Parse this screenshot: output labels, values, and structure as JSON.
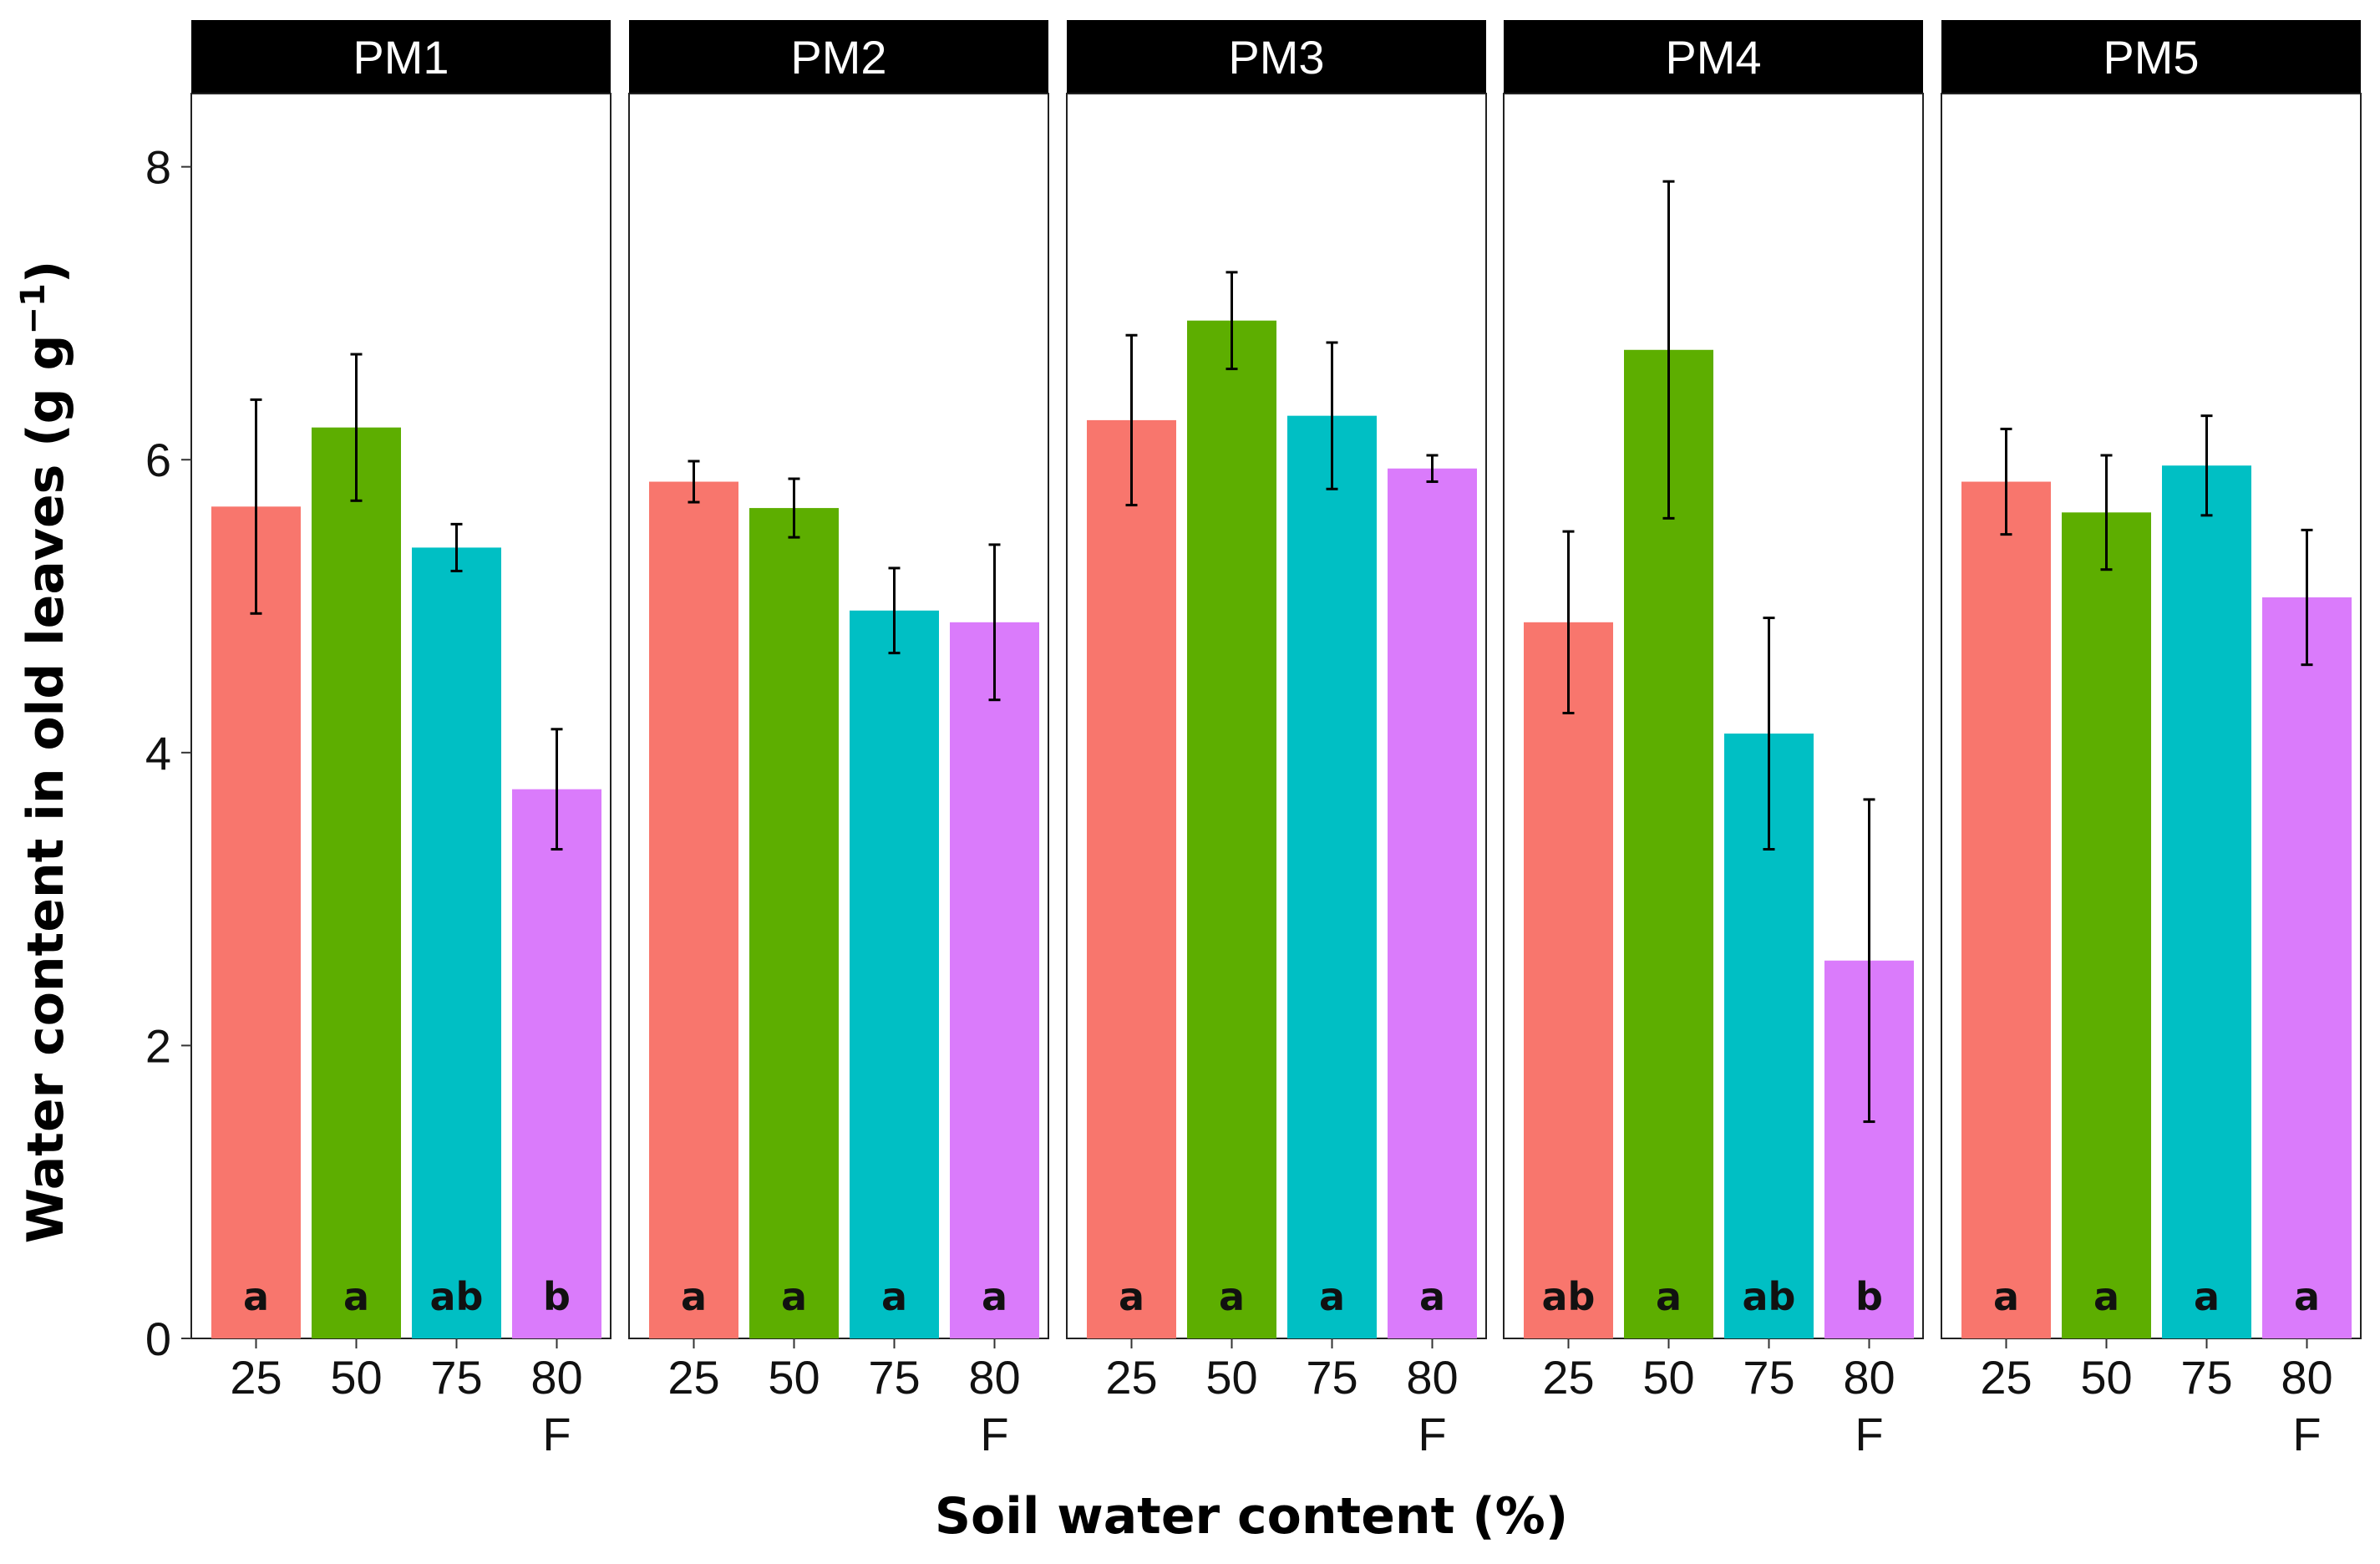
{
  "chart_data": {
    "type": "bar",
    "title": "",
    "xlabel": "Soil water content (%)",
    "ylabel": "Water content in old leaves (g g",
    "ylabel_superscript": "−1",
    "ylabel_close": ")",
    "ylim": [
      0,
      8.5
    ],
    "yticks": [
      0,
      2,
      4,
      6,
      8
    ],
    "categories": [
      {
        "main": "25",
        "sub": ""
      },
      {
        "main": "50",
        "sub": ""
      },
      {
        "main": "75",
        "sub": ""
      },
      {
        "main": "80",
        "sub": "F"
      }
    ],
    "colors": [
      "#F8766D",
      "#5DAE00",
      "#00BFC4",
      "#DA7BFB"
    ],
    "panels": [
      {
        "name": "PM1",
        "values": [
          5.68,
          6.22,
          5.4,
          3.75
        ],
        "errors": [
          0.73,
          0.5,
          0.16,
          0.41
        ],
        "letters": [
          "a",
          "a",
          "ab",
          "b"
        ]
      },
      {
        "name": "PM2",
        "values": [
          5.85,
          5.67,
          4.97,
          4.89
        ],
        "errors": [
          0.14,
          0.2,
          0.29,
          0.53
        ],
        "letters": [
          "a",
          "a",
          "a",
          "a"
        ]
      },
      {
        "name": "PM3",
        "values": [
          6.27,
          6.95,
          6.3,
          5.94
        ],
        "errors": [
          0.58,
          0.33,
          0.5,
          0.09
        ],
        "letters": [
          "a",
          "a",
          "a",
          "a"
        ]
      },
      {
        "name": "PM4",
        "values": [
          4.89,
          6.75,
          4.13,
          2.58
        ],
        "errors": [
          0.62,
          1.15,
          0.79,
          1.1
        ],
        "letters": [
          "ab",
          "a",
          "ab",
          "b"
        ]
      },
      {
        "name": "PM5",
        "values": [
          5.85,
          5.64,
          5.96,
          5.06
        ],
        "errors": [
          0.36,
          0.39,
          0.34,
          0.46
        ],
        "letters": [
          "a",
          "a",
          "a",
          "a"
        ]
      }
    ]
  }
}
